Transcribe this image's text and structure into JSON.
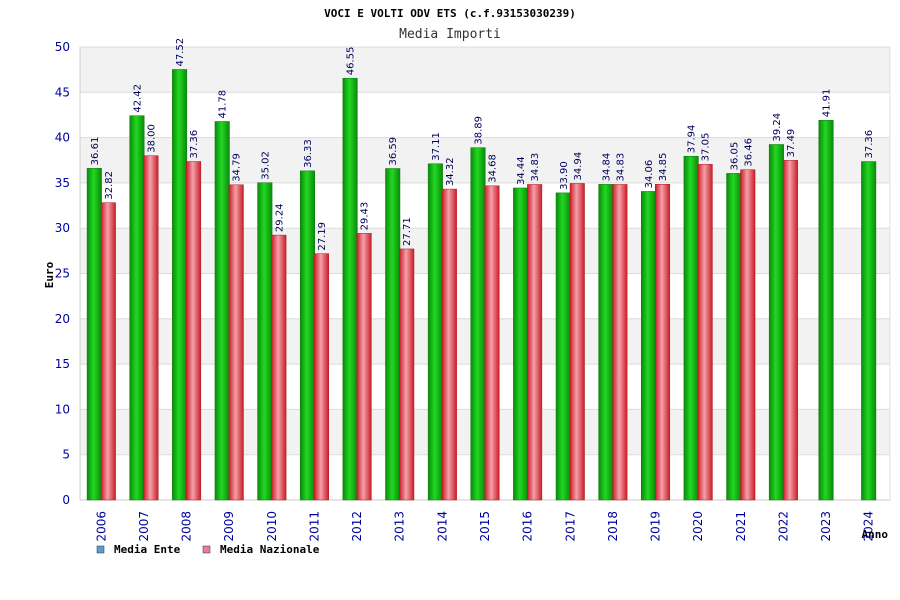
{
  "chart_data": {
    "type": "bar",
    "title": "VOCI E VOLTI ODV ETS (c.f.93153030239)",
    "subtitle": "Media Importi",
    "ylabel": "Euro",
    "xlabel": "Anno",
    "ylim": [
      0,
      50
    ],
    "yticks": [
      0,
      5,
      10,
      15,
      20,
      25,
      30,
      35,
      40,
      45,
      50
    ],
    "grid": true,
    "legend_position": "bottom-left",
    "categories": [
      "2006",
      "2007",
      "2008",
      "2009",
      "2010",
      "2011",
      "2012",
      "2013",
      "2014",
      "2015",
      "2016",
      "2017",
      "2018",
      "2019",
      "2020",
      "2021",
      "2022",
      "2023",
      "2024"
    ],
    "series": [
      {
        "name": "Media Ente",
        "legend_color": "#5b9bd5",
        "color": "#12b812",
        "values": [
          36.61,
          42.42,
          47.52,
          41.78,
          35.02,
          36.33,
          46.55,
          36.59,
          37.11,
          38.89,
          34.44,
          33.9,
          34.84,
          34.06,
          37.94,
          36.05,
          39.24,
          41.91,
          37.36
        ],
        "labels": [
          "36.61",
          "42.42",
          "47.52",
          "41.78",
          "35.02",
          "36.33",
          "46.55",
          "36.59",
          "37.11",
          "38.89",
          "34.44",
          "33.90",
          "34.84",
          "34.06",
          "37.94",
          "36.05",
          "39.24",
          "41.91",
          "37.36"
        ]
      },
      {
        "name": "Media Nazionale",
        "legend_color": "#e87aa8",
        "color": "#e8323c",
        "values": [
          32.82,
          38.0,
          37.36,
          34.79,
          29.24,
          27.19,
          29.43,
          27.71,
          34.32,
          34.68,
          34.83,
          34.94,
          34.83,
          34.85,
          37.05,
          36.46,
          37.49,
          null,
          null
        ],
        "labels": [
          "32.82",
          "38.00",
          "37.36",
          "34.79",
          "29.24",
          "27.19",
          "29.43",
          "27.71",
          "34.32",
          "34.68",
          "34.83",
          "34.94",
          "34.83",
          "34.85",
          "37.05",
          "36.46",
          "37.49",
          null,
          null
        ]
      }
    ]
  }
}
